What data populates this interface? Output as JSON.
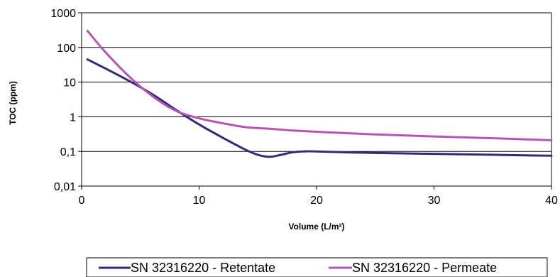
{
  "chart_data": {
    "type": "line",
    "xlabel": "Volume (L/m²)",
    "ylabel": "TOC (ppm)",
    "x_scale": "linear",
    "y_scale": "log",
    "xlim": [
      0,
      40
    ],
    "ylim": [
      0.01,
      1000
    ],
    "x_ticks": [
      0,
      10,
      20,
      30,
      40
    ],
    "x_tick_labels": [
      "0",
      "10",
      "20",
      "30",
      "40"
    ],
    "y_ticks": [
      0.01,
      0.1,
      1,
      10,
      100,
      1000
    ],
    "y_tick_labels": [
      "0,01",
      "0,1",
      "1",
      "10",
      "100",
      "1000"
    ],
    "grid": "horizontal",
    "legend_position": "bottom",
    "series": [
      {
        "name": "SN 32316220 - Retentate",
        "color": "#2e2c7a",
        "x": [
          0.5,
          2,
          4,
          6,
          8,
          10,
          12,
          14,
          15,
          16,
          17,
          18,
          19,
          20,
          25,
          30,
          35,
          40
        ],
        "y": [
          45,
          25,
          11,
          4.5,
          1.6,
          0.6,
          0.25,
          0.11,
          0.08,
          0.07,
          0.08,
          0.095,
          0.1,
          0.1,
          0.09,
          0.085,
          0.08,
          0.075
        ]
      },
      {
        "name": "SN 32316220 - Permeate",
        "color": "#b855b0",
        "x": [
          0.5,
          2,
          4,
          6,
          8,
          10,
          12,
          14,
          16,
          18,
          20,
          25,
          30,
          35,
          40
        ],
        "y": [
          300,
          75,
          15,
          4,
          1.5,
          0.9,
          0.65,
          0.5,
          0.45,
          0.4,
          0.37,
          0.31,
          0.27,
          0.24,
          0.21
        ]
      }
    ]
  }
}
